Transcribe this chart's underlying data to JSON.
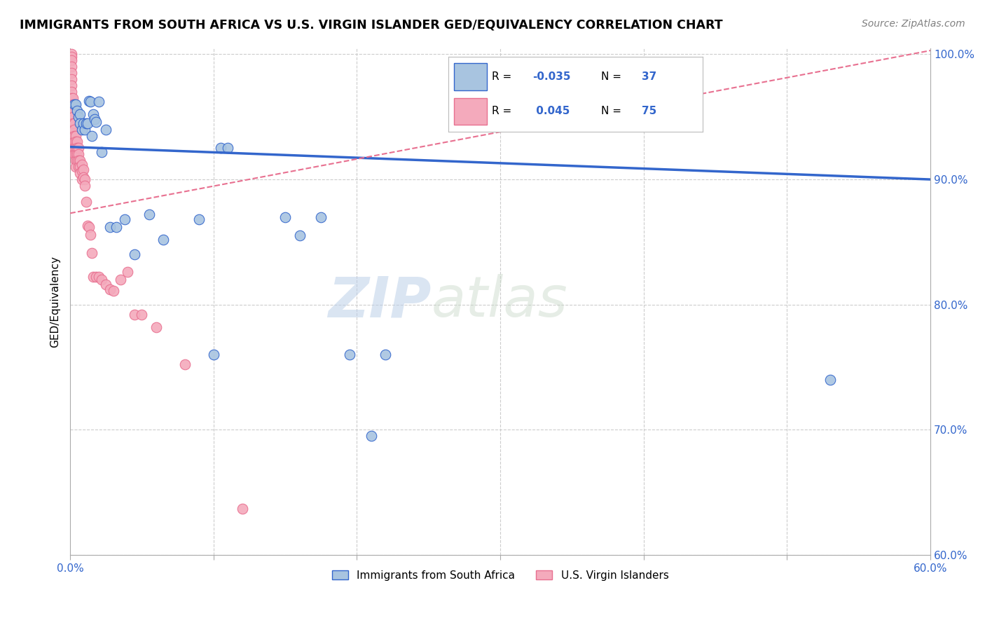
{
  "title": "IMMIGRANTS FROM SOUTH AFRICA VS U.S. VIRGIN ISLANDER GED/EQUIVALENCY CORRELATION CHART",
  "source": "Source: ZipAtlas.com",
  "ylabel": "GED/Equivalency",
  "xlim": [
    0.0,
    0.6
  ],
  "ylim": [
    0.6,
    1.005
  ],
  "xticks": [
    0.0,
    0.1,
    0.2,
    0.3,
    0.4,
    0.5,
    0.6
  ],
  "xticklabels": [
    "0.0%",
    "",
    "",
    "",
    "",
    "",
    "60.0%"
  ],
  "ytick_right": [
    0.6,
    0.7,
    0.8,
    0.9,
    1.0
  ],
  "yticklabels_right": [
    "60.0%",
    "70.0%",
    "80.0%",
    "90.0%",
    "100.0%"
  ],
  "blue_R": "-0.035",
  "blue_N": "37",
  "pink_R": "0.045",
  "pink_N": "75",
  "blue_color": "#A8C4E0",
  "pink_color": "#F4AABC",
  "blue_line_color": "#3366CC",
  "pink_line_color": "#E87090",
  "grid_color": "#CCCCCC",
  "watermark_zip": "ZIP",
  "watermark_atlas": "atlas",
  "legend_blue_label": "Immigrants from South Africa",
  "legend_pink_label": "U.S. Virgin Islanders",
  "blue_line_x0": 0.0,
  "blue_line_y0": 0.926,
  "blue_line_x1": 0.6,
  "blue_line_y1": 0.9,
  "pink_line_x0": 0.0,
  "pink_line_y0": 0.873,
  "pink_line_x1": 0.6,
  "pink_line_y1": 1.003,
  "blue_points_x": [
    0.003,
    0.004,
    0.005,
    0.006,
    0.007,
    0.007,
    0.008,
    0.009,
    0.01,
    0.011,
    0.012,
    0.013,
    0.014,
    0.015,
    0.016,
    0.017,
    0.018,
    0.02,
    0.022,
    0.025,
    0.028,
    0.032,
    0.038,
    0.045,
    0.055,
    0.065,
    0.09,
    0.1,
    0.105,
    0.11,
    0.15,
    0.16,
    0.175,
    0.195,
    0.21,
    0.22,
    0.53
  ],
  "blue_points_y": [
    0.96,
    0.96,
    0.955,
    0.95,
    0.952,
    0.945,
    0.94,
    0.945,
    0.94,
    0.945,
    0.945,
    0.963,
    0.962,
    0.935,
    0.952,
    0.948,
    0.946,
    0.962,
    0.922,
    0.94,
    0.862,
    0.862,
    0.868,
    0.84,
    0.872,
    0.852,
    0.868,
    0.76,
    0.925,
    0.925,
    0.87,
    0.855,
    0.87,
    0.76,
    0.695,
    0.76,
    0.74
  ],
  "pink_points_x": [
    0.001,
    0.001,
    0.001,
    0.001,
    0.001,
    0.001,
    0.001,
    0.001,
    0.001,
    0.001,
    0.001,
    0.001,
    0.001,
    0.001,
    0.001,
    0.001,
    0.001,
    0.002,
    0.002,
    0.002,
    0.002,
    0.002,
    0.002,
    0.002,
    0.002,
    0.002,
    0.003,
    0.003,
    0.003,
    0.003,
    0.003,
    0.003,
    0.004,
    0.004,
    0.004,
    0.004,
    0.004,
    0.004,
    0.005,
    0.005,
    0.005,
    0.005,
    0.006,
    0.006,
    0.006,
    0.006,
    0.007,
    0.007,
    0.007,
    0.008,
    0.008,
    0.008,
    0.009,
    0.009,
    0.01,
    0.01,
    0.011,
    0.012,
    0.013,
    0.014,
    0.015,
    0.016,
    0.018,
    0.02,
    0.022,
    0.025,
    0.028,
    0.03,
    0.035,
    0.04,
    0.045,
    0.05,
    0.06,
    0.08,
    0.12
  ],
  "pink_points_y": [
    1.0,
    0.998,
    0.995,
    0.99,
    0.985,
    0.98,
    0.975,
    0.97,
    0.965,
    0.96,
    0.955,
    0.95,
    0.945,
    0.94,
    0.935,
    0.93,
    0.925,
    0.965,
    0.96,
    0.955,
    0.95,
    0.945,
    0.94,
    0.935,
    0.93,
    0.925,
    0.945,
    0.94,
    0.935,
    0.93,
    0.925,
    0.92,
    0.935,
    0.93,
    0.925,
    0.92,
    0.915,
    0.91,
    0.93,
    0.925,
    0.92,
    0.915,
    0.925,
    0.92,
    0.915,
    0.91,
    0.915,
    0.91,
    0.905,
    0.912,
    0.907,
    0.9,
    0.908,
    0.902,
    0.9,
    0.895,
    0.882,
    0.863,
    0.862,
    0.856,
    0.841,
    0.822,
    0.822,
    0.822,
    0.82,
    0.816,
    0.812,
    0.811,
    0.82,
    0.826,
    0.792,
    0.792,
    0.782,
    0.752,
    0.637
  ]
}
